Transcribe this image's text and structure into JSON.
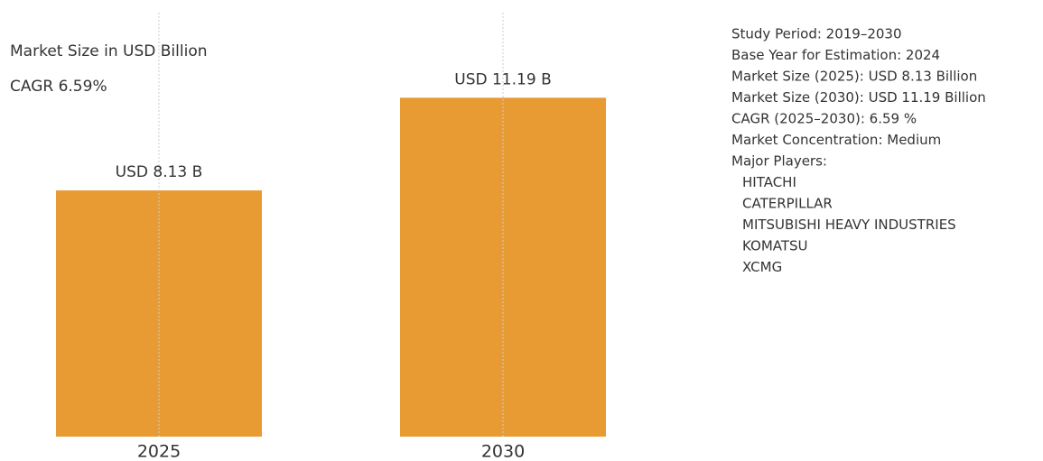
{
  "chart_data": {
    "type": "bar",
    "annotations": [
      "Market Size in USD Billion",
      "CAGR 6.59%"
    ],
    "categories": [
      "2025",
      "2030"
    ],
    "values": [
      8.13,
      11.19
    ],
    "value_labels": [
      "USD 8.13 B",
      "USD 11.19 B"
    ],
    "color": "#e99b33",
    "ylim": [
      0,
      14
    ],
    "grid": true
  },
  "info_panel": {
    "lines": [
      "Study Period: 2019–2030",
      "Base Year for Estimation: 2024",
      "Market Size (2025): USD 8.13 Billion",
      "Market Size (2030): USD 11.19 Billion",
      "CAGR (2025–2030): 6.59 %",
      "Market Concentration: Medium",
      "Major Players:"
    ],
    "players": [
      "HITACHI",
      "CATERPILLAR",
      "MITSUBISHI HEAVY INDUSTRIES",
      "KOMATSU",
      "XCMG"
    ]
  }
}
